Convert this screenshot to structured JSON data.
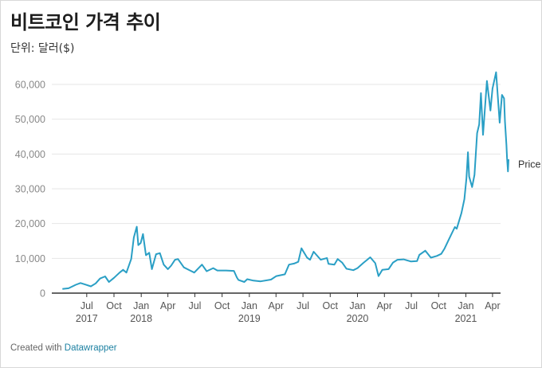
{
  "title": "비트코인 가격 추이",
  "subtitle": "단위: 달러($)",
  "footer": {
    "prefix": "Created with ",
    "link": "Datawrapper"
  },
  "colors": {
    "line": "#2a9fc5",
    "grid": "#e6e6e6",
    "axis": "#333333"
  },
  "chart_data": {
    "type": "line",
    "title": "비트코인 가격 추이",
    "ylabel": "",
    "xlabel": "",
    "ylim": [
      0,
      64000
    ],
    "yticks": [
      0,
      10000,
      20000,
      30000,
      40000,
      50000,
      60000
    ],
    "ytick_labels": [
      "0",
      "10,000",
      "20,000",
      "30,000",
      "40,000",
      "50,000",
      "60,000"
    ],
    "x_range": [
      "2017-04-01",
      "2021-05-25"
    ],
    "xticks": [
      {
        "date": "2017-07-01",
        "label": "Jul",
        "year": "2017"
      },
      {
        "date": "2017-10-01",
        "label": "Oct",
        "year": ""
      },
      {
        "date": "2018-01-01",
        "label": "Jan",
        "year": "2018"
      },
      {
        "date": "2018-04-01",
        "label": "Apr",
        "year": ""
      },
      {
        "date": "2018-07-01",
        "label": "Jul",
        "year": ""
      },
      {
        "date": "2018-10-01",
        "label": "Oct",
        "year": ""
      },
      {
        "date": "2019-01-01",
        "label": "Jan",
        "year": "2019"
      },
      {
        "date": "2019-04-01",
        "label": "Apr",
        "year": ""
      },
      {
        "date": "2019-07-01",
        "label": "Jul",
        "year": ""
      },
      {
        "date": "2019-10-01",
        "label": "Oct",
        "year": ""
      },
      {
        "date": "2020-01-01",
        "label": "Jan",
        "year": "2020"
      },
      {
        "date": "2020-04-01",
        "label": "Apr",
        "year": ""
      },
      {
        "date": "2020-07-01",
        "label": "Jul",
        "year": ""
      },
      {
        "date": "2020-10-01",
        "label": "Oct",
        "year": ""
      },
      {
        "date": "2021-01-01",
        "label": "Jan",
        "year": "2021"
      },
      {
        "date": "2021-04-01",
        "label": "Apr",
        "year": ""
      }
    ],
    "series": [
      {
        "name": "Price",
        "points": [
          [
            "2017-04-10",
            1200
          ],
          [
            "2017-05-01",
            1400
          ],
          [
            "2017-05-25",
            2400
          ],
          [
            "2017-06-10",
            2900
          ],
          [
            "2017-06-25",
            2500
          ],
          [
            "2017-07-15",
            1950
          ],
          [
            "2017-07-31",
            2800
          ],
          [
            "2017-08-15",
            4200
          ],
          [
            "2017-09-01",
            4800
          ],
          [
            "2017-09-14",
            3200
          ],
          [
            "2017-10-01",
            4400
          ],
          [
            "2017-10-20",
            5900
          ],
          [
            "2017-11-01",
            6700
          ],
          [
            "2017-11-12",
            5900
          ],
          [
            "2017-11-28",
            9800
          ],
          [
            "2017-12-07",
            16000
          ],
          [
            "2017-12-17",
            19100
          ],
          [
            "2017-12-22",
            13800
          ],
          [
            "2017-12-30",
            14400
          ],
          [
            "2018-01-07",
            17000
          ],
          [
            "2018-01-17",
            10900
          ],
          [
            "2018-01-28",
            11600
          ],
          [
            "2018-02-06",
            6900
          ],
          [
            "2018-02-20",
            11200
          ],
          [
            "2018-03-05",
            11500
          ],
          [
            "2018-03-18",
            8200
          ],
          [
            "2018-04-01",
            6900
          ],
          [
            "2018-04-12",
            7900
          ],
          [
            "2018-04-25",
            9600
          ],
          [
            "2018-05-05",
            9800
          ],
          [
            "2018-05-25",
            7400
          ],
          [
            "2018-06-15",
            6500
          ],
          [
            "2018-06-29",
            5900
          ],
          [
            "2018-07-25",
            8200
          ],
          [
            "2018-08-10",
            6300
          ],
          [
            "2018-09-01",
            7200
          ],
          [
            "2018-09-15",
            6500
          ],
          [
            "2018-10-15",
            6500
          ],
          [
            "2018-11-10",
            6400
          ],
          [
            "2018-11-20",
            4500
          ],
          [
            "2018-11-25",
            3800
          ],
          [
            "2018-12-15",
            3200
          ],
          [
            "2018-12-25",
            4000
          ],
          [
            "2019-01-15",
            3600
          ],
          [
            "2019-02-08",
            3400
          ],
          [
            "2019-03-15",
            3900
          ],
          [
            "2019-04-02",
            4900
          ],
          [
            "2019-05-01",
            5400
          ],
          [
            "2019-05-15",
            8200
          ],
          [
            "2019-06-01",
            8500
          ],
          [
            "2019-06-15",
            9000
          ],
          [
            "2019-06-26",
            12900
          ],
          [
            "2019-07-15",
            10200
          ],
          [
            "2019-07-25",
            9600
          ],
          [
            "2019-08-06",
            11900
          ],
          [
            "2019-08-30",
            9600
          ],
          [
            "2019-09-20",
            10100
          ],
          [
            "2019-09-25",
            8400
          ],
          [
            "2019-10-15",
            8200
          ],
          [
            "2019-10-26",
            9800
          ],
          [
            "2019-11-10",
            8800
          ],
          [
            "2019-11-25",
            7000
          ],
          [
            "2019-12-18",
            6600
          ],
          [
            "2020-01-01",
            7200
          ],
          [
            "2020-01-20",
            8600
          ],
          [
            "2020-02-13",
            10300
          ],
          [
            "2020-03-01",
            8600
          ],
          [
            "2020-03-12",
            4900
          ],
          [
            "2020-03-25",
            6700
          ],
          [
            "2020-04-15",
            6900
          ],
          [
            "2020-04-30",
            8800
          ],
          [
            "2020-05-15",
            9600
          ],
          [
            "2020-06-05",
            9700
          ],
          [
            "2020-06-30",
            9100
          ],
          [
            "2020-07-20",
            9200
          ],
          [
            "2020-07-28",
            11000
          ],
          [
            "2020-08-17",
            12200
          ],
          [
            "2020-09-05",
            10200
          ],
          [
            "2020-09-25",
            10700
          ],
          [
            "2020-10-10",
            11300
          ],
          [
            "2020-10-21",
            12800
          ],
          [
            "2020-11-05",
            15500
          ],
          [
            "2020-11-25",
            19000
          ],
          [
            "2020-12-01",
            18500
          ],
          [
            "2020-12-17",
            23000
          ],
          [
            "2020-12-27",
            27000
          ],
          [
            "2021-01-03",
            33000
          ],
          [
            "2021-01-08",
            40500
          ],
          [
            "2021-01-12",
            33500
          ],
          [
            "2021-01-22",
            30500
          ],
          [
            "2021-01-30",
            34000
          ],
          [
            "2021-02-08",
            46000
          ],
          [
            "2021-02-15",
            48500
          ],
          [
            "2021-02-21",
            57500
          ],
          [
            "2021-02-28",
            45500
          ],
          [
            "2021-03-13",
            61000
          ],
          [
            "2021-03-25",
            52500
          ],
          [
            "2021-04-01",
            58800
          ],
          [
            "2021-04-13",
            63500
          ],
          [
            "2021-04-25",
            49000
          ],
          [
            "2021-05-03",
            57000
          ],
          [
            "2021-05-10",
            56000
          ],
          [
            "2021-05-13",
            49500
          ],
          [
            "2021-05-18",
            42500
          ],
          [
            "2021-05-20",
            39000
          ],
          [
            "2021-05-23",
            35000
          ],
          [
            "2021-05-25",
            38500
          ]
        ]
      }
    ]
  }
}
